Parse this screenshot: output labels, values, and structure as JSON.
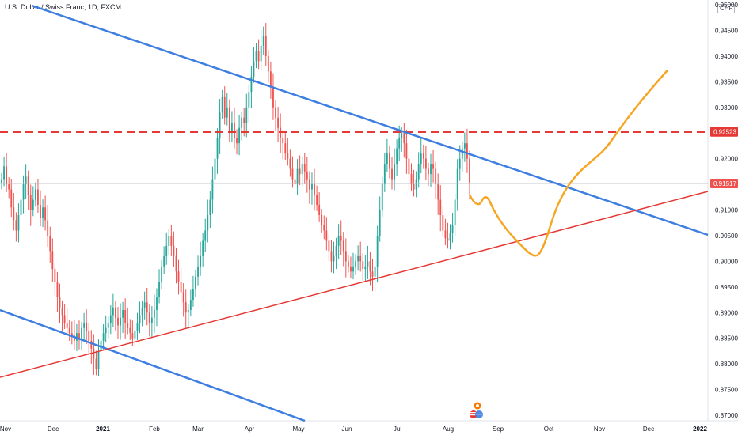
{
  "header": {
    "title": "U.S. Dollar / Swiss Franc, 1D, FXCM",
    "currency": "CHF"
  },
  "colors": {
    "up": "#26a69a",
    "down": "#ef5350",
    "trend_blue": "#3d7ee0",
    "trend_red": "#e53935",
    "resistance": "#e53935",
    "projection": "#f5a623",
    "current_price_line": "#b2b5be"
  },
  "chart_data": {
    "type": "candlestick",
    "symbol": "USDCHF",
    "timeframe": "1D",
    "x_ticks": [
      "Nov",
      "Dec",
      "2021",
      "Feb",
      "Mar",
      "Apr",
      "May",
      "Jun",
      "Jul",
      "Aug",
      "Sep",
      "Oct",
      "Nov",
      "Dec",
      "2022"
    ],
    "y_ticks": [
      "0.87000",
      "0.87500",
      "0.88000",
      "0.88500",
      "0.89000",
      "0.89500",
      "0.90000",
      "0.90500",
      "0.91000",
      "0.91500",
      "0.92000",
      "0.92500",
      "0.93000",
      "0.93500",
      "0.94000",
      "0.94500",
      "0.95000"
    ],
    "ylim": [
      0.8686,
      0.9598
    ],
    "price_tags": [
      {
        "label": "0.92523",
        "value": 0.92523,
        "color": "#e53935"
      },
      {
        "label": "0.91517",
        "value": 0.91517,
        "color": "#ef5350"
      }
    ],
    "closes": [
      0.916,
      0.9185,
      0.915,
      0.914,
      0.9105,
      0.908,
      0.906,
      0.909,
      0.912,
      0.915,
      0.9165,
      0.913,
      0.91,
      0.912,
      0.914,
      0.911,
      0.9085,
      0.9105,
      0.908,
      0.905,
      0.902,
      0.8985,
      0.896,
      0.893,
      0.891,
      0.8895,
      0.888,
      0.887,
      0.886,
      0.8855,
      0.8845,
      0.886,
      0.885,
      0.887,
      0.888,
      0.8865,
      0.8845,
      0.883,
      0.881,
      0.879,
      0.8825,
      0.8845,
      0.886,
      0.887,
      0.888,
      0.8895,
      0.891,
      0.889,
      0.8875,
      0.889,
      0.8905,
      0.888,
      0.887,
      0.886,
      0.885,
      0.8865,
      0.888,
      0.8895,
      0.891,
      0.892,
      0.89,
      0.888,
      0.889,
      0.8905,
      0.893,
      0.896,
      0.899,
      0.901,
      0.903,
      0.905,
      0.903,
      0.901,
      0.898,
      0.896,
      0.894,
      0.892,
      0.89,
      0.8905,
      0.8925,
      0.8945,
      0.897,
      0.899,
      0.901,
      0.904,
      0.906,
      0.909,
      0.912,
      0.916,
      0.92,
      0.924,
      0.929,
      0.932,
      0.928,
      0.93,
      0.925,
      0.927,
      0.924,
      0.923,
      0.926,
      0.928,
      0.927,
      0.93,
      0.933,
      0.936,
      0.939,
      0.941,
      0.939,
      0.942,
      0.944,
      0.94,
      0.937,
      0.934,
      0.93,
      0.928,
      0.926,
      0.924,
      0.923,
      0.921,
      0.92,
      0.918,
      0.916,
      0.915,
      0.918,
      0.917,
      0.919,
      0.9175,
      0.916,
      0.914,
      0.915,
      0.913,
      0.911,
      0.909,
      0.907,
      0.906,
      0.904,
      0.902,
      0.9,
      0.901,
      0.903,
      0.905,
      0.904,
      0.902,
      0.9,
      0.899,
      0.898,
      0.899,
      0.9,
      0.901,
      0.9,
      0.8985,
      0.899,
      0.9,
      0.898,
      0.897,
      0.899,
      0.905,
      0.91,
      0.915,
      0.919,
      0.921,
      0.918,
      0.916,
      0.919,
      0.922,
      0.924,
      0.925,
      0.923,
      0.92,
      0.917,
      0.915,
      0.914,
      0.916,
      0.919,
      0.921,
      0.92,
      0.918,
      0.917,
      0.919,
      0.918,
      0.915,
      0.912,
      0.909,
      0.906,
      0.9045,
      0.904,
      0.9055,
      0.907,
      0.912,
      0.918,
      0.92,
      0.922,
      0.923,
      0.92,
      0.9152
    ],
    "resistance_level": 0.92523,
    "trendlines": [
      {
        "name": "upper-descending",
        "color": "#3d7ee0"
      },
      {
        "name": "lower-descending",
        "color": "#3d7ee0"
      },
      {
        "name": "ascending-support",
        "color": "#e53935"
      }
    ],
    "projection_path_color": "#f5a623"
  }
}
